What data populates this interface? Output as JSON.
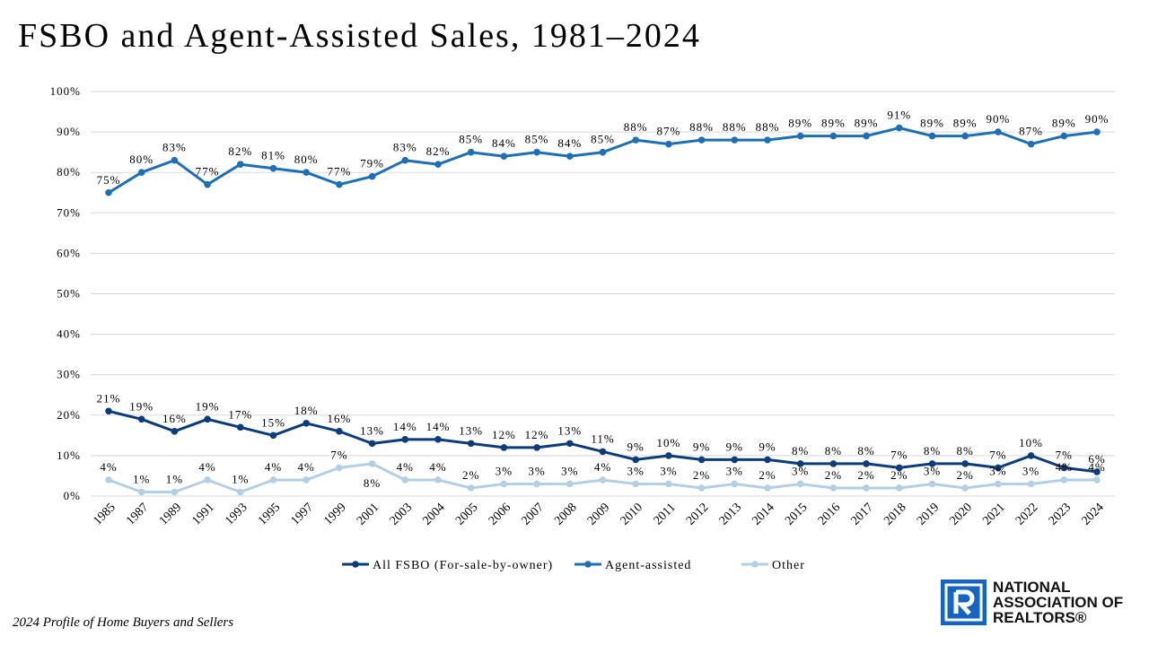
{
  "page": {
    "title": "FSBO and Agent-Assisted Sales, 1981–2024",
    "source": "2024 Profile of Home Buyers and Sellers",
    "logo": {
      "line1": "NATIONAL",
      "line2": "ASSOCIATION OF",
      "line3": "REALTORS®"
    }
  },
  "chart_data": {
    "type": "line",
    "title": "FSBO and Agent-Assisted Sales, 1981–2024",
    "xlabel": "",
    "ylabel": "",
    "ylim": [
      0,
      100
    ],
    "yticks": [
      "0%",
      "10%",
      "20%",
      "30%",
      "40%",
      "50%",
      "60%",
      "70%",
      "80%",
      "90%",
      "100%"
    ],
    "grid": true,
    "legend_position": "bottom",
    "categories": [
      "1985",
      "1987",
      "1989",
      "1991",
      "1993",
      "1995",
      "1997",
      "1999",
      "2001",
      "2003",
      "2004",
      "2005",
      "2006",
      "2007",
      "2008",
      "2009",
      "2010",
      "2011",
      "2012",
      "2013",
      "2014",
      "2015",
      "2016",
      "2017",
      "2018",
      "2019",
      "2020",
      "2021",
      "2022",
      "2023",
      "2024"
    ],
    "series": [
      {
        "name": "All FSBO (For-sale-by-owner)",
        "color": "#0d3c7a",
        "values": [
          21,
          19,
          16,
          19,
          17,
          15,
          18,
          16,
          13,
          14,
          14,
          13,
          12,
          12,
          13,
          11,
          9,
          10,
          9,
          9,
          9,
          8,
          8,
          8,
          7,
          8,
          8,
          7,
          10,
          7,
          6
        ]
      },
      {
        "name": "Agent-assisted",
        "color": "#1f6fb5",
        "values": [
          75,
          80,
          83,
          77,
          82,
          81,
          80,
          77,
          79,
          83,
          82,
          85,
          84,
          85,
          84,
          85,
          88,
          87,
          88,
          88,
          88,
          89,
          89,
          89,
          91,
          89,
          89,
          90,
          87,
          89,
          90
        ]
      },
      {
        "name": "Other",
        "color": "#b4cfe3",
        "values": [
          4,
          1,
          1,
          4,
          1,
          4,
          4,
          7,
          8,
          4,
          4,
          2,
          3,
          3,
          3,
          4,
          3,
          3,
          2,
          3,
          2,
          3,
          2,
          2,
          2,
          3,
          2,
          3,
          3,
          4,
          4
        ]
      }
    ]
  }
}
